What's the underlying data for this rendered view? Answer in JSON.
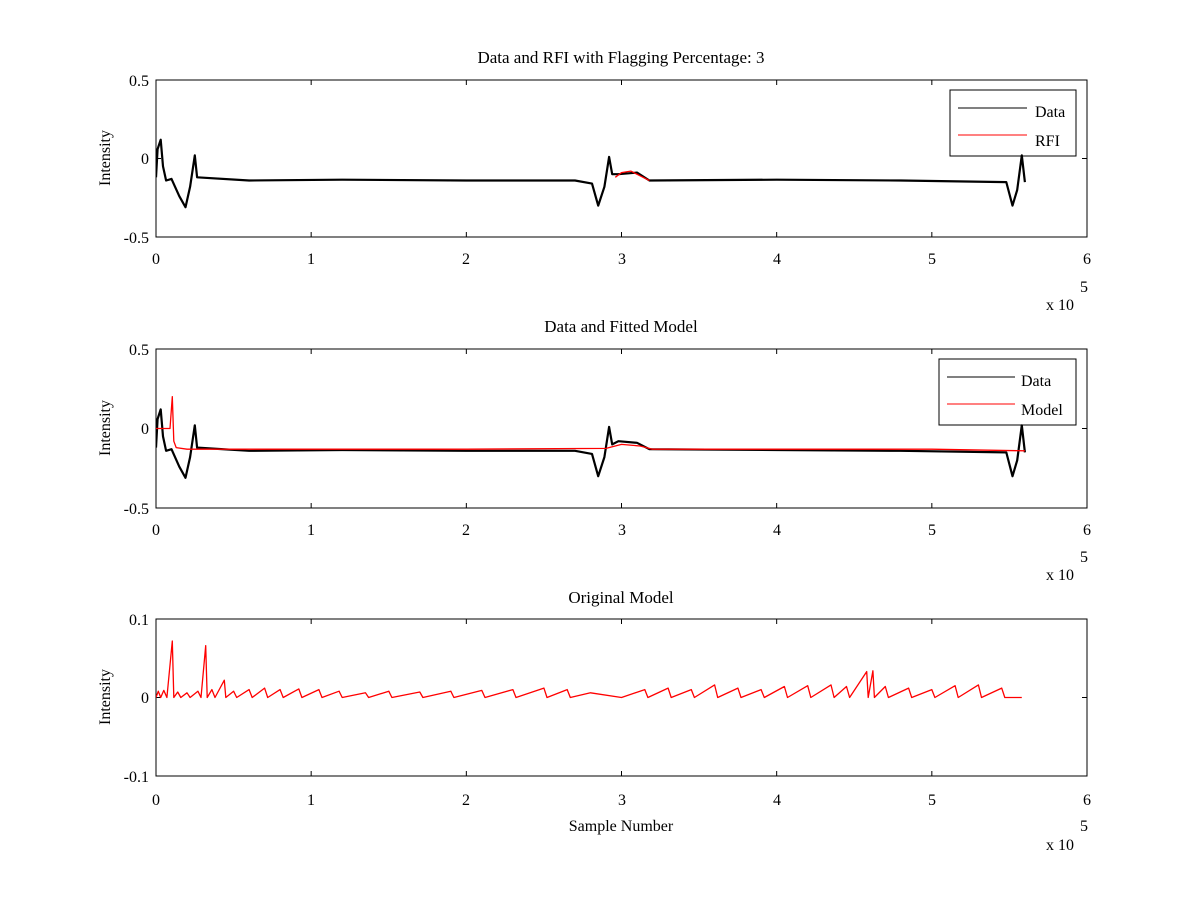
{
  "chart_data": [
    {
      "type": "line",
      "title": "Data and RFI with Flagging Percentage: 3",
      "xlabel": "",
      "ylabel": "Intensity",
      "xlim": [
        0,
        600000
      ],
      "ylim": [
        -0.5,
        0.5
      ],
      "x_ticks": [
        "0",
        "1",
        "2",
        "3",
        "4",
        "5",
        "6"
      ],
      "y_ticks": [
        "0.5",
        "0",
        "-0.5"
      ],
      "x_multiplier": "x 10",
      "x_multiplier_exp": "5",
      "legend_position": "top-right",
      "series": [
        {
          "name": "Data",
          "color": "#000000",
          "points": [
            [
              0,
              -0.12
            ],
            [
              1000,
              0.06
            ],
            [
              3000,
              0.12
            ],
            [
              4500,
              -0.05
            ],
            [
              6500,
              -0.14
            ],
            [
              10000,
              -0.13
            ],
            [
              15000,
              -0.24
            ],
            [
              19000,
              -0.31
            ],
            [
              22000,
              -0.18
            ],
            [
              25000,
              0.02
            ],
            [
              26500,
              -0.12
            ],
            [
              60000,
              -0.14
            ],
            [
              120000,
              -0.135
            ],
            [
              200000,
              -0.14
            ],
            [
              270000,
              -0.14
            ],
            [
              281000,
              -0.16
            ],
            [
              285000,
              -0.3
            ],
            [
              289000,
              -0.18
            ],
            [
              292000,
              0.01
            ],
            [
              294000,
              -0.1
            ],
            [
              298000,
              -0.1
            ],
            [
              310000,
              -0.09
            ],
            [
              318000,
              -0.14
            ],
            [
              400000,
              -0.135
            ],
            [
              480000,
              -0.14
            ],
            [
              548000,
              -0.15
            ],
            [
              552000,
              -0.3
            ],
            [
              555000,
              -0.2
            ],
            [
              558000,
              0.02
            ],
            [
              560000,
              -0.15
            ]
          ]
        },
        {
          "name": "RFI",
          "color": "#ff0000",
          "points": [
            [
              296000,
              -0.12
            ],
            [
              300000,
              -0.09
            ],
            [
              306000,
              -0.08
            ],
            [
              312000,
              -0.11
            ],
            [
              318000,
              -0.14
            ]
          ]
        }
      ]
    },
    {
      "type": "line",
      "title": "Data and Fitted Model",
      "xlabel": "",
      "ylabel": "Intensity",
      "xlim": [
        0,
        600000
      ],
      "ylim": [
        -0.5,
        0.5
      ],
      "x_ticks": [
        "0",
        "1",
        "2",
        "3",
        "4",
        "5",
        "6"
      ],
      "y_ticks": [
        "0.5",
        "0",
        "-0.5"
      ],
      "x_multiplier": "x 10",
      "x_multiplier_exp": "5",
      "legend_position": "top-right",
      "series": [
        {
          "name": "Data",
          "color": "#000000",
          "points": [
            [
              0,
              -0.12
            ],
            [
              1000,
              0.06
            ],
            [
              3000,
              0.12
            ],
            [
              4500,
              -0.05
            ],
            [
              6500,
              -0.14
            ],
            [
              10000,
              -0.13
            ],
            [
              15000,
              -0.24
            ],
            [
              19000,
              -0.31
            ],
            [
              22000,
              -0.18
            ],
            [
              25000,
              0.02
            ],
            [
              26500,
              -0.12
            ],
            [
              60000,
              -0.14
            ],
            [
              120000,
              -0.135
            ],
            [
              200000,
              -0.14
            ],
            [
              270000,
              -0.14
            ],
            [
              281000,
              -0.16
            ],
            [
              285000,
              -0.3
            ],
            [
              289000,
              -0.18
            ],
            [
              292000,
              0.01
            ],
            [
              294000,
              -0.1
            ],
            [
              298000,
              -0.08
            ],
            [
              310000,
              -0.09
            ],
            [
              318000,
              -0.13
            ],
            [
              400000,
              -0.135
            ],
            [
              480000,
              -0.14
            ],
            [
              548000,
              -0.15
            ],
            [
              552000,
              -0.3
            ],
            [
              555000,
              -0.2
            ],
            [
              558000,
              0.02
            ],
            [
              560000,
              -0.15
            ]
          ]
        },
        {
          "name": "Model",
          "color": "#ff0000",
          "points": [
            [
              0,
              0.0
            ],
            [
              9000,
              0.0
            ],
            [
              10500,
              0.2
            ],
            [
              11500,
              -0.08
            ],
            [
              13000,
              -0.12
            ],
            [
              20000,
              -0.13
            ],
            [
              100000,
              -0.13
            ],
            [
              200000,
              -0.13
            ],
            [
              290000,
              -0.125
            ],
            [
              300000,
              -0.1
            ],
            [
              312000,
              -0.11
            ],
            [
              320000,
              -0.13
            ],
            [
              400000,
              -0.13
            ],
            [
              500000,
              -0.13
            ],
            [
              560000,
              -0.14
            ]
          ]
        }
      ]
    },
    {
      "type": "line",
      "title": "Original Model",
      "xlabel": "Sample Number",
      "ylabel": "Intensity",
      "xlim": [
        0,
        600000
      ],
      "ylim": [
        -0.1,
        0.1
      ],
      "x_ticks": [
        "0",
        "1",
        "2",
        "3",
        "4",
        "5",
        "6"
      ],
      "y_ticks": [
        "0.1",
        "0",
        "-0.1"
      ],
      "x_multiplier": "x 10",
      "x_multiplier_exp": "5",
      "series": [
        {
          "name": "",
          "color": "#ff0000",
          "points": [
            [
              0,
              0.0
            ],
            [
              1500,
              0.008
            ],
            [
              3000,
              0.0
            ],
            [
              5000,
              0.009
            ],
            [
              7000,
              0.0
            ],
            [
              10500,
              0.072
            ],
            [
              11500,
              0.0
            ],
            [
              14000,
              0.007
            ],
            [
              16000,
              0.0
            ],
            [
              20000,
              0.006
            ],
            [
              22000,
              0.0
            ],
            [
              27000,
              0.008
            ],
            [
              29000,
              0.0
            ],
            [
              32000,
              0.066
            ],
            [
              33000,
              0.0
            ],
            [
              36000,
              0.01
            ],
            [
              38000,
              0.0
            ],
            [
              44000,
              0.022
            ],
            [
              45000,
              0.0
            ],
            [
              50000,
              0.008
            ],
            [
              52000,
              0.0
            ],
            [
              60000,
              0.01
            ],
            [
              62000,
              0.0
            ],
            [
              70000,
              0.012
            ],
            [
              72000,
              0.0
            ],
            [
              80000,
              0.01
            ],
            [
              82000,
              0.0
            ],
            [
              92000,
              0.011
            ],
            [
              94000,
              0.0
            ],
            [
              105000,
              0.01
            ],
            [
              107000,
              0.0
            ],
            [
              118000,
              0.008
            ],
            [
              120000,
              0.0
            ],
            [
              135000,
              0.006
            ],
            [
              137000,
              0.0
            ],
            [
              150000,
              0.008
            ],
            [
              152000,
              0.0
            ],
            [
              170000,
              0.007
            ],
            [
              172000,
              0.0
            ],
            [
              190000,
              0.008
            ],
            [
              192000,
              0.0
            ],
            [
              210000,
              0.009
            ],
            [
              212000,
              0.0
            ],
            [
              230000,
              0.01
            ],
            [
              232000,
              0.0
            ],
            [
              250000,
              0.012
            ],
            [
              252000,
              0.0
            ],
            [
              265000,
              0.01
            ],
            [
              267000,
              0.0
            ],
            [
              280000,
              0.006
            ],
            [
              300000,
              0.0
            ],
            [
              315000,
              0.01
            ],
            [
              317000,
              0.0
            ],
            [
              330000,
              0.012
            ],
            [
              332000,
              0.0
            ],
            [
              345000,
              0.01
            ],
            [
              347000,
              0.0
            ],
            [
              360000,
              0.016
            ],
            [
              362000,
              0.0
            ],
            [
              375000,
              0.012
            ],
            [
              377000,
              0.0
            ],
            [
              390000,
              0.01
            ],
            [
              392000,
              0.0
            ],
            [
              405000,
              0.014
            ],
            [
              407000,
              0.0
            ],
            [
              420000,
              0.015
            ],
            [
              422000,
              0.0
            ],
            [
              435000,
              0.016
            ],
            [
              437000,
              0.0
            ],
            [
              445000,
              0.014
            ],
            [
              447000,
              0.0
            ],
            [
              458000,
              0.033
            ],
            [
              459000,
              0.0
            ],
            [
              462000,
              0.034
            ],
            [
              463000,
              0.0
            ],
            [
              470000,
              0.014
            ],
            [
              472000,
              0.0
            ],
            [
              485000,
              0.012
            ],
            [
              487000,
              0.0
            ],
            [
              500000,
              0.01
            ],
            [
              502000,
              0.0
            ],
            [
              515000,
              0.015
            ],
            [
              517000,
              0.0
            ],
            [
              530000,
              0.016
            ],
            [
              532000,
              0.0
            ],
            [
              545000,
              0.012
            ],
            [
              547000,
              0.0
            ],
            [
              555000,
              0.0
            ],
            [
              558000,
              0.0
            ]
          ]
        }
      ]
    }
  ]
}
